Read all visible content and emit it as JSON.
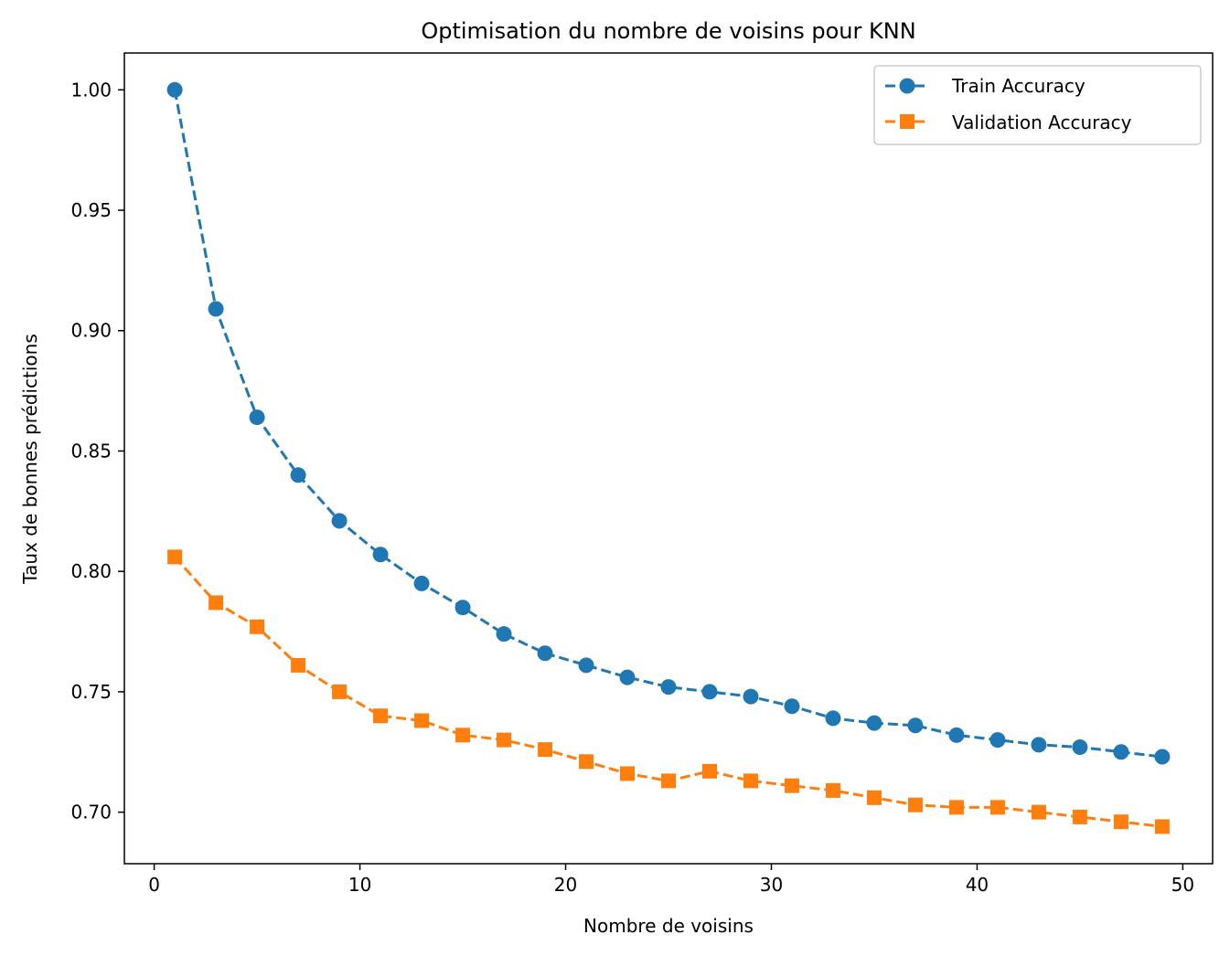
{
  "chart_data": {
    "type": "line",
    "title": "Optimisation du nombre de voisins pour KNN",
    "xlabel": "Nombre de voisins",
    "ylabel": "Taux de bonnes prédictions",
    "xlim": [
      -1.45,
      51.45
    ],
    "ylim": [
      0.6786,
      1.0153
    ],
    "x_ticks": [
      0,
      10,
      20,
      30,
      40,
      50
    ],
    "y_ticks": [
      0.7,
      0.75,
      0.8,
      0.85,
      0.9,
      0.95,
      1.0
    ],
    "x_tick_labels": [
      "0",
      "10",
      "20",
      "30",
      "40",
      "50"
    ],
    "y_tick_labels": [
      "0.70",
      "0.75",
      "0.80",
      "0.85",
      "0.90",
      "0.95",
      "1.00"
    ],
    "grid": false,
    "legend_position": "top-right",
    "x": [
      1,
      3,
      5,
      7,
      9,
      11,
      13,
      15,
      17,
      19,
      21,
      23,
      25,
      27,
      29,
      31,
      33,
      35,
      37,
      39,
      41,
      43,
      45,
      47,
      49
    ],
    "series": [
      {
        "name": "Train Accuracy",
        "color": "#1f77b4",
        "marker": "circle",
        "line_style": "dashed",
        "values": [
          1.0,
          0.909,
          0.864,
          0.84,
          0.821,
          0.807,
          0.795,
          0.785,
          0.774,
          0.766,
          0.761,
          0.756,
          0.752,
          0.75,
          0.748,
          0.744,
          0.739,
          0.737,
          0.736,
          0.732,
          0.73,
          0.728,
          0.727,
          0.725,
          0.723
        ]
      },
      {
        "name": "Validation Accuracy",
        "color": "#ff7f0e",
        "marker": "square",
        "line_style": "dashed",
        "values": [
          0.806,
          0.787,
          0.777,
          0.761,
          0.75,
          0.74,
          0.738,
          0.732,
          0.73,
          0.726,
          0.721,
          0.716,
          0.713,
          0.717,
          0.713,
          0.711,
          0.709,
          0.706,
          0.703,
          0.702,
          0.702,
          0.7,
          0.698,
          0.696,
          0.694
        ]
      }
    ]
  }
}
